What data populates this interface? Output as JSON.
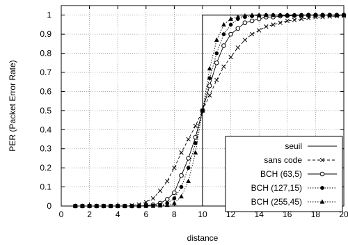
{
  "chart_data": {
    "type": "line",
    "xlabel": "distance",
    "ylabel": "PER (Packet Error Rate)",
    "xlim": [
      0,
      20
    ],
    "ylim": [
      0,
      1.05
    ],
    "xticks": [
      0,
      2,
      4,
      6,
      8,
      10,
      12,
      14,
      16,
      18,
      20
    ],
    "yticks": [
      0,
      0.1,
      0.2,
      0.3,
      0.4,
      0.5,
      0.6,
      0.7,
      0.8,
      0.9,
      1
    ],
    "xtick_labels": [
      "0",
      "2",
      "4",
      "6",
      "8",
      "10",
      "12",
      "14",
      "16",
      "18",
      "20"
    ],
    "ytick_labels": [
      "0",
      "0.1",
      "0.2",
      "0.3",
      "0.4",
      "0.5",
      "0.6",
      "0.7",
      "0.8",
      "0.9",
      "1"
    ],
    "grid": true,
    "legend_position": "bottom-right",
    "series": [
      {
        "name": "seuil",
        "style": "solid",
        "marker": "none",
        "x": [
          1,
          10,
          10,
          20
        ],
        "y": [
          0,
          0,
          1,
          1
        ]
      },
      {
        "name": "sans code",
        "style": "dashed",
        "marker": "x",
        "x": [
          1,
          1.5,
          2,
          2.5,
          3,
          3.5,
          4,
          4.5,
          5,
          5.5,
          6,
          6.5,
          7,
          7.5,
          8,
          8.5,
          9,
          9.5,
          10,
          10.5,
          11,
          11.5,
          12,
          12.5,
          13,
          13.5,
          14,
          14.5,
          15,
          15.5,
          16,
          16.5,
          17,
          17.5,
          18,
          18.5,
          19,
          19.5,
          20
        ],
        "y": [
          0,
          0,
          0,
          0,
          0,
          0,
          0,
          0,
          0.003,
          0.008,
          0.02,
          0.04,
          0.08,
          0.13,
          0.2,
          0.28,
          0.35,
          0.42,
          0.5,
          0.58,
          0.66,
          0.73,
          0.78,
          0.83,
          0.87,
          0.9,
          0.92,
          0.94,
          0.95,
          0.96,
          0.97,
          0.975,
          0.98,
          0.985,
          0.99,
          0.99,
          0.993,
          0.995,
          0.997
        ]
      },
      {
        "name": "BCH (63,5)",
        "style": "solid",
        "marker": "circle",
        "x": [
          1,
          1.5,
          2,
          2.5,
          3,
          3.5,
          4,
          4.5,
          5,
          5.5,
          6,
          6.5,
          7,
          7.5,
          8,
          8.5,
          9,
          9.5,
          10,
          10.5,
          11,
          11.5,
          12,
          12.5,
          13,
          13.5,
          14,
          14.5,
          15,
          15.5,
          16,
          16.5,
          17,
          17.5,
          18,
          18.5,
          19,
          19.5,
          20
        ],
        "y": [
          0,
          0,
          0,
          0,
          0,
          0,
          0,
          0,
          0,
          0,
          0.002,
          0.006,
          0.015,
          0.035,
          0.07,
          0.16,
          0.25,
          0.36,
          0.5,
          0.63,
          0.75,
          0.84,
          0.9,
          0.93,
          0.96,
          0.97,
          0.98,
          0.99,
          0.99,
          0.995,
          0.997,
          0.998,
          0.999,
          1,
          1,
          1,
          1,
          1,
          1
        ]
      },
      {
        "name": "BCH (127,15)",
        "style": "dotted",
        "marker": "filled-circle",
        "x": [
          1,
          1.5,
          2,
          2.5,
          3,
          3.5,
          4,
          4.5,
          5,
          5.5,
          6,
          6.5,
          7,
          7.5,
          8,
          8.5,
          9,
          9.5,
          10,
          10.5,
          11,
          11.5,
          12,
          12.5,
          13,
          13.5,
          14,
          14.5,
          15,
          15.5,
          16,
          16.5,
          17,
          17.5,
          18,
          18.5,
          19,
          19.5,
          20
        ],
        "y": [
          0,
          0,
          0,
          0,
          0,
          0,
          0,
          0,
          0,
          0,
          0,
          0.002,
          0.006,
          0.015,
          0.04,
          0.1,
          0.2,
          0.33,
          0.5,
          0.67,
          0.8,
          0.9,
          0.95,
          0.98,
          0.99,
          0.995,
          0.998,
          1,
          1,
          1,
          1,
          1,
          1,
          1,
          1,
          1,
          1,
          1,
          1
        ]
      },
      {
        "name": "BCH (255,45)",
        "style": "dotted",
        "marker": "triangle",
        "x": [
          1,
          1.5,
          2,
          2.5,
          3,
          3.5,
          4,
          4.5,
          5,
          5.5,
          6,
          6.5,
          7,
          7.5,
          8,
          8.5,
          9,
          9.5,
          10,
          10.5,
          11,
          11.5,
          12,
          12.5,
          13,
          13.5,
          14,
          14.5,
          15,
          15.5,
          16,
          16.5,
          17,
          17.5,
          18,
          18.5,
          19,
          19.5,
          20
        ],
        "y": [
          0,
          0,
          0,
          0,
          0,
          0,
          0,
          0,
          0,
          0,
          0,
          0,
          0.002,
          0.005,
          0.015,
          0.05,
          0.13,
          0.28,
          0.5,
          0.72,
          0.87,
          0.95,
          0.98,
          0.99,
          0.997,
          1,
          1,
          1,
          1,
          1,
          1,
          1,
          1,
          1,
          1,
          1,
          1,
          1,
          1
        ]
      }
    ]
  }
}
